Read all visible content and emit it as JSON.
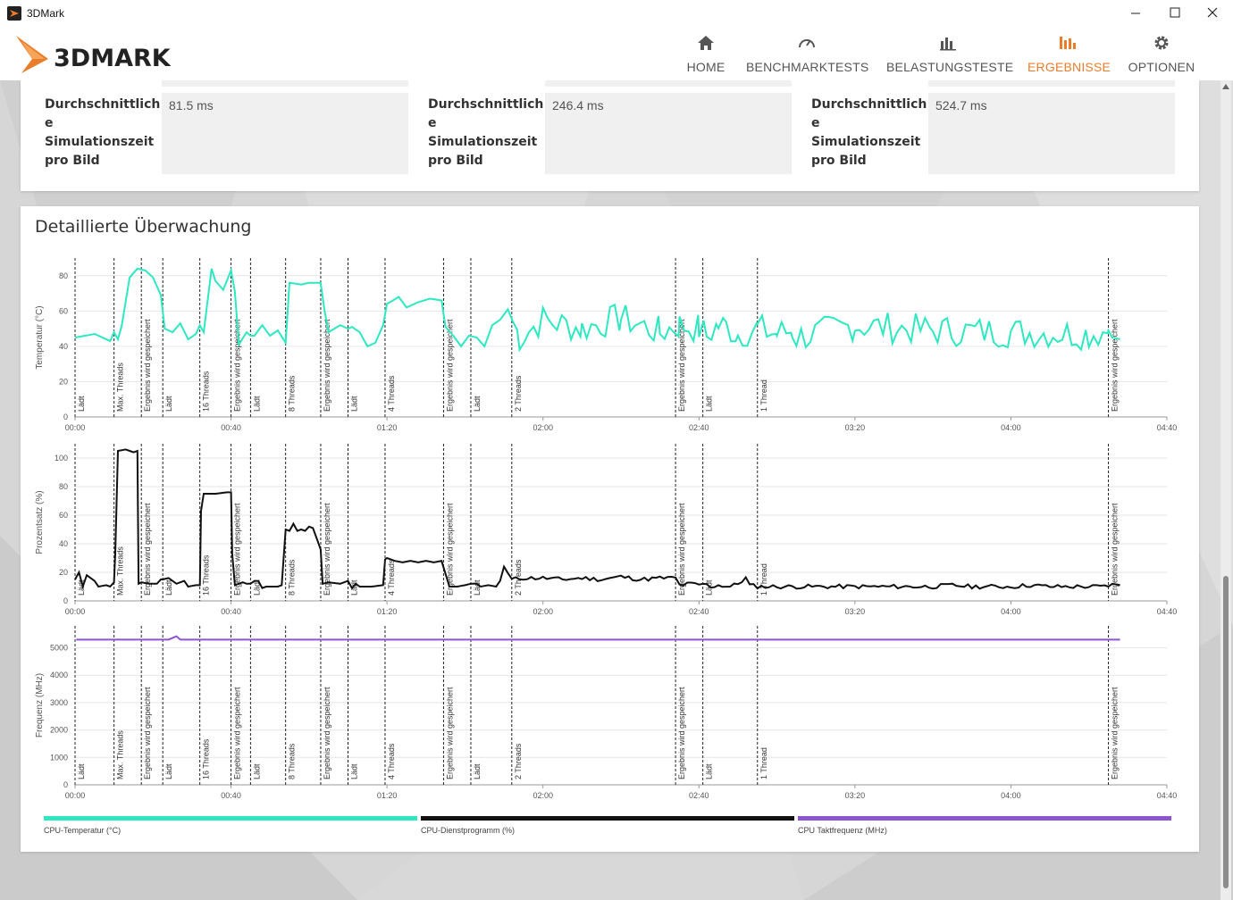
{
  "window": {
    "title": "3DMark"
  },
  "brand": {
    "logo_text": "3DMARK",
    "accent": "#ea7d2c"
  },
  "nav": {
    "items": [
      {
        "label": "HOME",
        "icon": "home-icon"
      },
      {
        "label": "BENCHMARKTESTS",
        "icon": "speedometer-icon"
      },
      {
        "label": "BELASTUNGSTESTE",
        "icon": "bar-chart-icon"
      },
      {
        "label": "ERGEBNISSE",
        "icon": "results-icon",
        "active": true
      },
      {
        "label": "OPTIONEN",
        "icon": "gear-icon"
      }
    ]
  },
  "stats": [
    {
      "label_lines": [
        "Durchschnittlich",
        "e",
        "Simulationszeit",
        "pro Bild"
      ],
      "value": "81.5 ms"
    },
    {
      "label_lines": [
        "Durchschnittlich",
        "e",
        "Simulationszeit",
        "pro Bild"
      ],
      "value": "246.4 ms"
    },
    {
      "label_lines": [
        "Durchschnittlich",
        "e",
        "Simulationszeit",
        "pro Bild"
      ],
      "value": "524.7 ms"
    }
  ],
  "monitoring": {
    "title": "Detaillierte Überwachung",
    "legend": [
      {
        "label": "CPU-Temperatur (°C)",
        "color": "#2de8c0"
      },
      {
        "label": "CPU-Dienstprogramm (%)",
        "color": "#111111"
      },
      {
        "label": "CPU Taktfrequenz (MHz)",
        "color": "#8e55d0"
      }
    ]
  },
  "chart_data": [
    {
      "type": "line",
      "ylabel": "Temperatur (°C)",
      "ylim": [
        0,
        90
      ],
      "yticks": [
        0,
        20,
        40,
        60,
        80
      ],
      "xlim": [
        0,
        280
      ],
      "xticks": [
        "00:00",
        "00:40",
        "01:20",
        "02:00",
        "02:40",
        "03:20",
        "04:00",
        "04:40"
      ],
      "series": [
        {
          "name": "CPU-Temperatur (°C)",
          "color": "#2de8c0",
          "values_at_seconds": {
            "0": 45,
            "5": 47,
            "9": 43,
            "12": 52,
            "10": 48,
            "11": 44,
            "14": 79,
            "16": 84,
            "18": 83,
            "20": 79,
            "22": 69,
            "23": 50,
            "25": 48,
            "27": 53,
            "29": 44,
            "31": 47,
            "32": 52,
            "33": 48,
            "35": 84,
            "36": 77,
            "38": 72,
            "40": 83,
            "41": 71,
            "42": 41,
            "44": 48,
            "45": 46,
            "46": 46,
            "48": 52,
            "50": 46,
            "52": 49,
            "54": 42,
            "55": 76,
            "58": 75,
            "60": 76,
            "63": 76,
            "64": 60,
            "65": 48,
            "68": 52,
            "70": 50,
            "71": 51,
            "73": 48,
            "75": 40,
            "77": 42,
            "79": 52,
            "80": 64,
            "83": 68,
            "85": 62,
            "88": 65,
            "91": 67,
            "94": 66,
            "95": 51,
            "97": 46,
            "99": 40,
            "101": 46,
            "103": 45,
            "105": 40,
            "107": 52,
            "109": 55,
            "111": 61,
            "114": 45,
            "120": 55,
            "130": 50,
            "140": 56,
            "150": 48,
            "155": 52,
            "160": 50,
            "162": 46,
            "165": 52,
            "167": 51,
            "170": 47,
            "175": 50,
            "180": 47,
            "184": 49,
            "185": 45,
            "200": 52,
            "220": 49,
            "240": 48,
            "260": 47,
            "265": 49,
            "266": 45,
            "268": 44
          }
        }
      ],
      "markers": [
        {
          "t": 0,
          "label": "Lädt"
        },
        {
          "t": 10,
          "label": "Max. Threads"
        },
        {
          "t": 17,
          "label": "Ergebnis wird gespeichert"
        },
        {
          "t": 22.5,
          "label": "Lädt"
        },
        {
          "t": 32,
          "label": "16 Threads"
        },
        {
          "t": 40,
          "label": "Ergebnis wird gespeichert"
        },
        {
          "t": 45,
          "label": "Lädt"
        },
        {
          "t": 54,
          "label": "8 Threads"
        },
        {
          "t": 63,
          "label": "Ergebnis wird gespeichert"
        },
        {
          "t": 70,
          "label": "Lädt"
        },
        {
          "t": 79.5,
          "label": "4 Threads"
        },
        {
          "t": 94.5,
          "label": "Ergebnis wird gespeichert"
        },
        {
          "t": 101.5,
          "label": "Lädt"
        },
        {
          "t": 112,
          "label": "2 Threads"
        },
        {
          "t": 154,
          "label": "Ergebnis wird gespeichert"
        },
        {
          "t": 161,
          "label": "Lädt"
        },
        {
          "t": 175,
          "label": "1 Thread"
        },
        {
          "t": 265,
          "label": "Ergebnis wird gespeichert"
        }
      ]
    },
    {
      "type": "line",
      "ylabel": "Prozentsatz (%)",
      "ylim": [
        0,
        110
      ],
      "yticks": [
        0,
        20,
        40,
        60,
        80,
        100
      ],
      "xlim": [
        0,
        280
      ],
      "xticks": [
        "00:00",
        "00:40",
        "01:20",
        "02:00",
        "02:40",
        "03:20",
        "04:00",
        "04:40"
      ],
      "series": [
        {
          "name": "CPU-Dienstprogramm (%)",
          "color": "#111111"
        }
      ]
    },
    {
      "type": "line",
      "ylabel": "Frequenz (MHz)",
      "ylim": [
        0,
        5800
      ],
      "yticks": [
        0,
        1000,
        2000,
        3000,
        4000,
        5000
      ],
      "xlim": [
        0,
        280
      ],
      "xticks": [
        "00:00",
        "00:40",
        "01:20",
        "02:00",
        "02:40",
        "03:20",
        "04:00",
        "04:40"
      ],
      "series": [
        {
          "name": "CPU Taktfrequenz (MHz)",
          "color": "#8e55d0",
          "value": 5300
        }
      ]
    }
  ]
}
